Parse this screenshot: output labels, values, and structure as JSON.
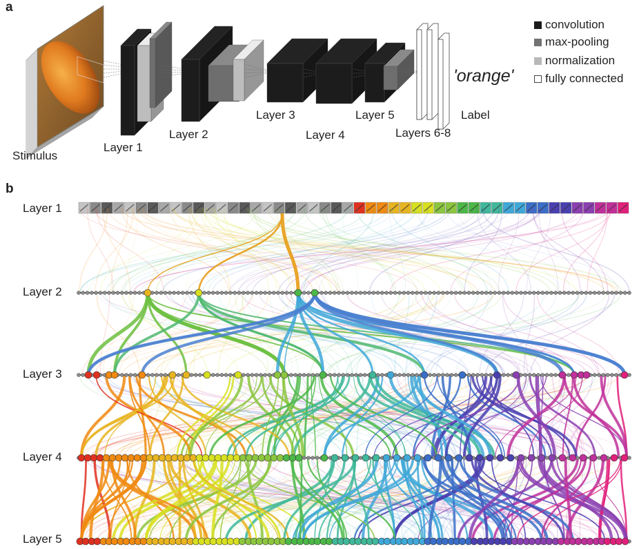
{
  "panel_a": {
    "letter": "a",
    "stimulus_label": "Stimulus",
    "layer_labels": [
      "Layer 1",
      "Layer 2",
      "Layer 3",
      "Layer 4",
      "Layer 5",
      "Layers 6-8"
    ],
    "output_label": "'orange'",
    "label_caption": "Label",
    "legend": [
      {
        "label": "convolution",
        "color": "#1c1c1c"
      },
      {
        "label": "max-pooling",
        "color": "#737373"
      },
      {
        "label": "normalization",
        "color": "#b8b8b8"
      },
      {
        "label": "fully connected",
        "color": "#ffffff"
      }
    ],
    "colors": {
      "convolution": "#1c1c1c",
      "pooling": "#6e6e6e",
      "normalization": "#bdbdbd",
      "fc": "#ffffff",
      "orange": "#e07a1f"
    }
  },
  "panel_b": {
    "letter": "b",
    "layer_labels": [
      "Layer 1",
      "Layer 2",
      "Layer 3",
      "Layer 4",
      "Layer 5"
    ],
    "colors": {
      "node": "#8c8c8c",
      "series": [
        "#e03020",
        "#f08a10",
        "#e8b420",
        "#d8e020",
        "#8cc63f",
        "#4cb848",
        "#40b89a",
        "#40a8d8",
        "#3a6ec8",
        "#4a40b0",
        "#8a40b0",
        "#c0309a",
        "#e0207a"
      ]
    }
  }
}
